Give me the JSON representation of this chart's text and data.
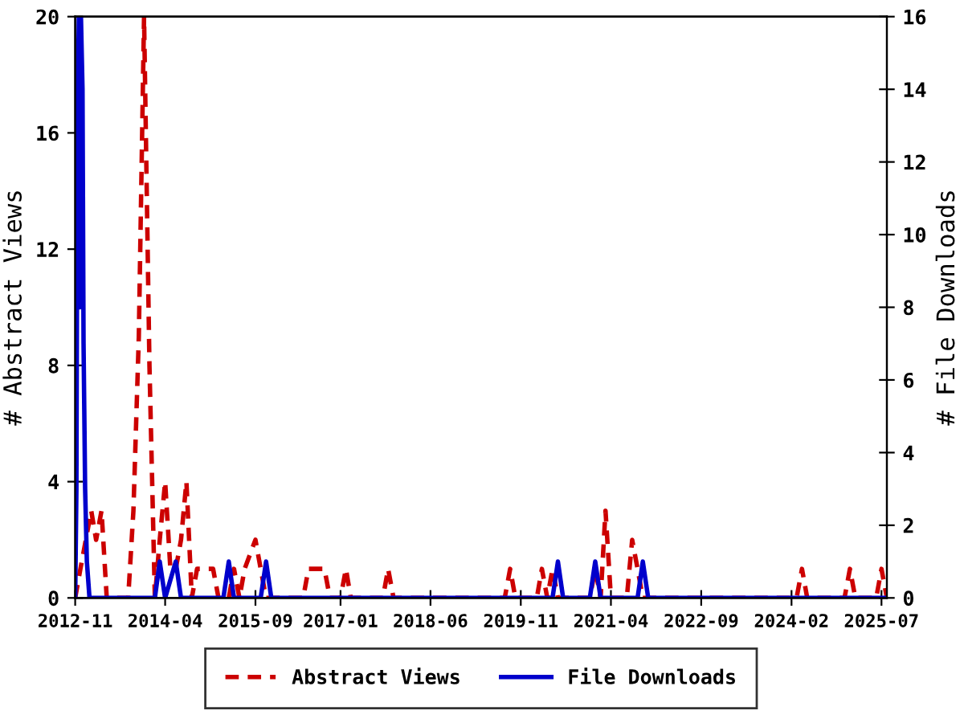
{
  "chart_data": {
    "type": "line",
    "xlim": [
      "2012-11",
      "2025-08"
    ],
    "xticks": [
      {
        "value": "2012-11",
        "label": "2012-11"
      },
      {
        "value": "2014-04",
        "label": "2014-04"
      },
      {
        "value": "2015-09",
        "label": "2015-09"
      },
      {
        "value": "2017-01",
        "label": "2017-01"
      },
      {
        "value": "2018-06",
        "label": "2018-06"
      },
      {
        "value": "2019-11",
        "label": "2019-11"
      },
      {
        "value": "2021-04",
        "label": "2021-04"
      },
      {
        "value": "2022-09",
        "label": "2022-09"
      },
      {
        "value": "2024-02",
        "label": "2024-02"
      },
      {
        "value": "2025-07",
        "label": "2025-07"
      }
    ],
    "ylim": [
      0,
      20
    ],
    "yticks": [
      0,
      4,
      8,
      12,
      16,
      20
    ],
    "y2lim": [
      0,
      16
    ],
    "y2ticks": [
      0,
      2,
      4,
      6,
      8,
      10,
      12,
      14,
      16
    ],
    "ylabel": "# Abstract Views",
    "y2label": "# File Downloads",
    "grid": false,
    "legend": "bottom",
    "marker": "none",
    "series": [
      {
        "name": "Abstract Views",
        "color": "#cc0000",
        "line_style": "dashed",
        "axis": "y",
        "x": [
          "2012-11",
          "2012-12",
          "2013-01",
          "2013-02",
          "2013-03",
          "2013-04",
          "2013-05",
          "2013-09",
          "2013-10",
          "2013-11",
          "2013-12",
          "2014-01",
          "2014-02",
          "2014-03",
          "2014-04",
          "2014-05",
          "2014-06",
          "2014-07",
          "2014-08",
          "2014-09",
          "2014-10",
          "2015-01",
          "2015-02",
          "2015-04",
          "2015-05",
          "2015-06",
          "2015-07",
          "2015-09",
          "2015-10",
          "2015-11",
          "2016-06",
          "2016-07",
          "2016-10",
          "2016-11",
          "2017-01",
          "2017-02",
          "2017-03",
          "2017-09",
          "2017-10",
          "2017-11",
          "2019-08",
          "2019-09",
          "2019-10",
          "2020-02",
          "2020-03",
          "2020-04",
          "2020-05",
          "2020-06",
          "2020-12",
          "2021-01",
          "2021-02",
          "2021-03",
          "2021-04",
          "2021-07",
          "2021-08",
          "2021-09",
          "2021-10",
          "2024-03",
          "2024-04",
          "2024-05",
          "2024-12",
          "2025-01",
          "2025-02",
          "2025-06",
          "2025-07",
          "2025-08"
        ],
        "values": [
          0,
          1,
          2,
          3,
          2,
          3,
          0,
          0,
          3,
          9,
          20,
          8,
          0,
          2,
          4,
          1,
          1,
          2,
          4,
          0,
          1,
          1,
          0,
          0,
          1,
          0,
          1,
          2,
          1,
          0,
          0,
          1,
          1,
          0,
          0,
          1,
          0,
          0,
          1,
          0,
          0,
          1,
          0,
          0,
          1,
          0,
          1,
          0,
          0,
          1,
          0,
          3,
          0,
          0,
          2,
          1,
          0,
          0,
          1,
          0,
          0,
          1,
          0,
          0,
          1,
          0
        ]
      },
      {
        "name": "File Downloads",
        "color": "#0000cc",
        "line_style": "solid",
        "axis": "y2",
        "x": [
          "2012-11-01",
          "2012-11-08",
          "2012-11-14",
          "2012-11-22",
          "2012-11-28",
          "2012-12-04",
          "2012-12-13",
          "2012-12-19",
          "2012-12-28",
          "2013-01-07",
          "2013-01-22",
          "2014-02",
          "2014-03",
          "2014-04",
          "2014-06",
          "2014-07",
          "2015-03",
          "2015-04",
          "2015-05",
          "2015-10",
          "2015-11",
          "2015-12",
          "2020-05",
          "2020-06",
          "2020-07",
          "2020-12",
          "2021-01",
          "2021-02",
          "2021-09",
          "2021-10",
          "2021-11",
          "2025-08"
        ],
        "values": [
          0,
          3,
          13,
          16,
          8,
          16,
          14,
          7,
          3,
          1,
          0,
          0,
          1,
          0,
          1,
          0,
          0,
          1,
          0,
          0,
          1,
          0,
          0,
          1,
          0,
          0,
          1,
          0,
          0,
          1,
          0,
          0
        ]
      }
    ]
  }
}
